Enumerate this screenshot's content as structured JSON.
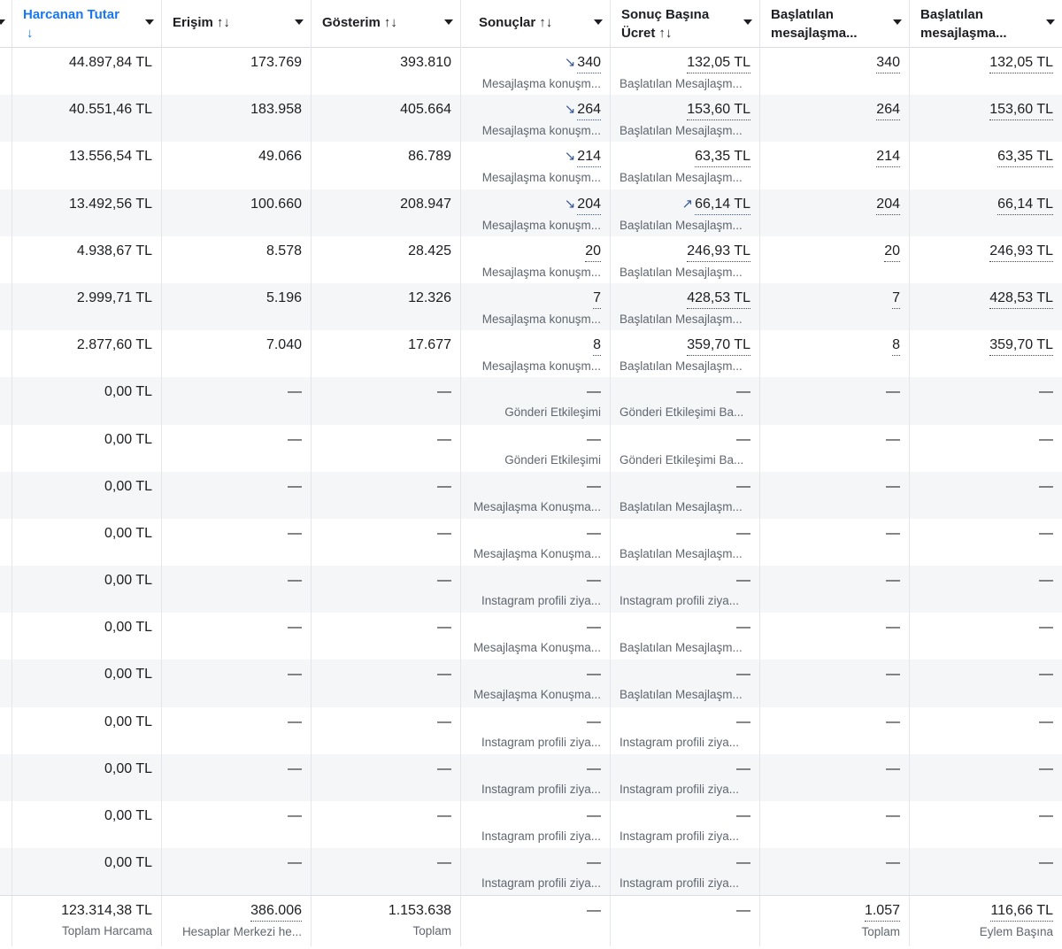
{
  "headers": [
    {
      "label": "Harcanan Tutar",
      "sort": "↓",
      "sorted": true
    },
    {
      "label": "Erişim",
      "sort": "↑↓"
    },
    {
      "label": "Gösterim",
      "sort": "↑↓"
    },
    {
      "label": "Sonuçlar",
      "sort": "↑↓"
    },
    {
      "label": "Sonuç Başına Ücret",
      "sort": "↑↓"
    },
    {
      "label": "Başlatılan mesajlaşma...",
      "sort": ""
    },
    {
      "label": "Başlatılan mesajlaşma...",
      "sort": ""
    }
  ],
  "icons": {
    "trend_down": "↘",
    "trend_up": "↗",
    "dash": "—"
  },
  "rows": [
    {
      "spend": "44.897,84 TL",
      "reach": "173.769",
      "impr": "393.810",
      "results": "340",
      "results_trend": "↘",
      "results_sub": "Mesajlaşma konuşm...",
      "cpr": "132,05 TL",
      "cpr_trend": "",
      "cpr_sub": "Başlatılan Mesajlaşm...",
      "msg": "340",
      "msg_cost": "132,05 TL"
    },
    {
      "spend": "40.551,46 TL",
      "reach": "183.958",
      "impr": "405.664",
      "results": "264",
      "results_trend": "↘",
      "results_sub": "Mesajlaşma konuşm...",
      "cpr": "153,60 TL",
      "cpr_trend": "",
      "cpr_sub": "Başlatılan Mesajlaşm...",
      "msg": "264",
      "msg_cost": "153,60 TL"
    },
    {
      "spend": "13.556,54 TL",
      "reach": "49.066",
      "impr": "86.789",
      "results": "214",
      "results_trend": "↘",
      "results_sub": "Mesajlaşma konuşm...",
      "cpr": "63,35 TL",
      "cpr_trend": "",
      "cpr_sub": "Başlatılan Mesajlaşm...",
      "msg": "214",
      "msg_cost": "63,35 TL"
    },
    {
      "spend": "13.492,56 TL",
      "reach": "100.660",
      "impr": "208.947",
      "results": "204",
      "results_trend": "↘",
      "results_sub": "Mesajlaşma konuşm...",
      "cpr": "66,14 TL",
      "cpr_trend": "↗",
      "cpr_sub": "Başlatılan Mesajlaşm...",
      "msg": "204",
      "msg_cost": "66,14 TL"
    },
    {
      "spend": "4.938,67 TL",
      "reach": "8.578",
      "impr": "28.425",
      "results": "20",
      "results_trend": "",
      "results_sub": "Mesajlaşma konuşm...",
      "cpr": "246,93 TL",
      "cpr_trend": "",
      "cpr_sub": "Başlatılan Mesajlaşm...",
      "msg": "20",
      "msg_cost": "246,93 TL"
    },
    {
      "spend": "2.999,71 TL",
      "reach": "5.196",
      "impr": "12.326",
      "results": "7",
      "results_trend": "",
      "results_sub": "Mesajlaşma konuşm...",
      "cpr": "428,53 TL",
      "cpr_trend": "",
      "cpr_sub": "Başlatılan Mesajlaşm...",
      "msg": "7",
      "msg_cost": "428,53 TL"
    },
    {
      "spend": "2.877,60 TL",
      "reach": "7.040",
      "impr": "17.677",
      "results": "8",
      "results_trend": "",
      "results_sub": "Mesajlaşma konuşm...",
      "cpr": "359,70 TL",
      "cpr_trend": "",
      "cpr_sub": "Başlatılan Mesajlaşm...",
      "msg": "8",
      "msg_cost": "359,70 TL"
    },
    {
      "spend": "0,00 TL",
      "reach": "—",
      "impr": "—",
      "results": "—",
      "results_trend": "",
      "results_sub": "Gönderi Etkileşimi",
      "cpr": "—",
      "cpr_trend": "",
      "cpr_sub": "Gönderi Etkileşimi Ba...",
      "msg": "—",
      "msg_cost": "—"
    },
    {
      "spend": "0,00 TL",
      "reach": "—",
      "impr": "—",
      "results": "—",
      "results_trend": "",
      "results_sub": "Gönderi Etkileşimi",
      "cpr": "—",
      "cpr_trend": "",
      "cpr_sub": "Gönderi Etkileşimi Ba...",
      "msg": "—",
      "msg_cost": "—"
    },
    {
      "spend": "0,00 TL",
      "reach": "—",
      "impr": "—",
      "results": "—",
      "results_trend": "",
      "results_sub": "Mesajlaşma Konuşma...",
      "cpr": "—",
      "cpr_trend": "",
      "cpr_sub": "Başlatılan Mesajlaşm...",
      "msg": "—",
      "msg_cost": "—"
    },
    {
      "spend": "0,00 TL",
      "reach": "—",
      "impr": "—",
      "results": "—",
      "results_trend": "",
      "results_sub": "Mesajlaşma Konuşma...",
      "cpr": "—",
      "cpr_trend": "",
      "cpr_sub": "Başlatılan Mesajlaşm...",
      "msg": "—",
      "msg_cost": "—"
    },
    {
      "spend": "0,00 TL",
      "reach": "—",
      "impr": "—",
      "results": "—",
      "results_trend": "",
      "results_sub": "Instagram profili ziya...",
      "cpr": "—",
      "cpr_trend": "",
      "cpr_sub": "Instagram profili ziya...",
      "msg": "—",
      "msg_cost": "—"
    },
    {
      "spend": "0,00 TL",
      "reach": "—",
      "impr": "—",
      "results": "—",
      "results_trend": "",
      "results_sub": "Mesajlaşma Konuşma...",
      "cpr": "—",
      "cpr_trend": "",
      "cpr_sub": "Başlatılan Mesajlaşm...",
      "msg": "—",
      "msg_cost": "—"
    },
    {
      "spend": "0,00 TL",
      "reach": "—",
      "impr": "—",
      "results": "—",
      "results_trend": "",
      "results_sub": "Mesajlaşma Konuşma...",
      "cpr": "—",
      "cpr_trend": "",
      "cpr_sub": "Başlatılan Mesajlaşm...",
      "msg": "—",
      "msg_cost": "—"
    },
    {
      "spend": "0,00 TL",
      "reach": "—",
      "impr": "—",
      "results": "—",
      "results_trend": "",
      "results_sub": "Instagram profili ziya...",
      "cpr": "—",
      "cpr_trend": "",
      "cpr_sub": "Instagram profili ziya...",
      "msg": "—",
      "msg_cost": "—"
    },
    {
      "spend": "0,00 TL",
      "reach": "—",
      "impr": "—",
      "results": "—",
      "results_trend": "",
      "results_sub": "Instagram profili ziya...",
      "cpr": "—",
      "cpr_trend": "",
      "cpr_sub": "Instagram profili ziya...",
      "msg": "—",
      "msg_cost": "—"
    },
    {
      "spend": "0,00 TL",
      "reach": "—",
      "impr": "—",
      "results": "—",
      "results_trend": "",
      "results_sub": "Instagram profili ziya...",
      "cpr": "—",
      "cpr_trend": "",
      "cpr_sub": "Instagram profili ziya...",
      "msg": "—",
      "msg_cost": "—"
    },
    {
      "spend": "0,00 TL",
      "reach": "—",
      "impr": "—",
      "results": "—",
      "results_trend": "",
      "results_sub": "Instagram profili ziya...",
      "cpr": "—",
      "cpr_trend": "",
      "cpr_sub": "Instagram profili ziya...",
      "msg": "—",
      "msg_cost": "—"
    }
  ],
  "footer": {
    "spend": "123.314,38 TL",
    "spend_sub": "Toplam Harcama",
    "reach": "386.006",
    "reach_sub": "Hesaplar Merkezi he...",
    "impr": "1.153.638",
    "impr_sub": "Toplam",
    "results": "—",
    "cpr": "—",
    "msg": "1.057",
    "msg_sub": "Toplam",
    "msg_cost": "116,66 TL",
    "msg_cost_sub": "Eylem Başına"
  }
}
